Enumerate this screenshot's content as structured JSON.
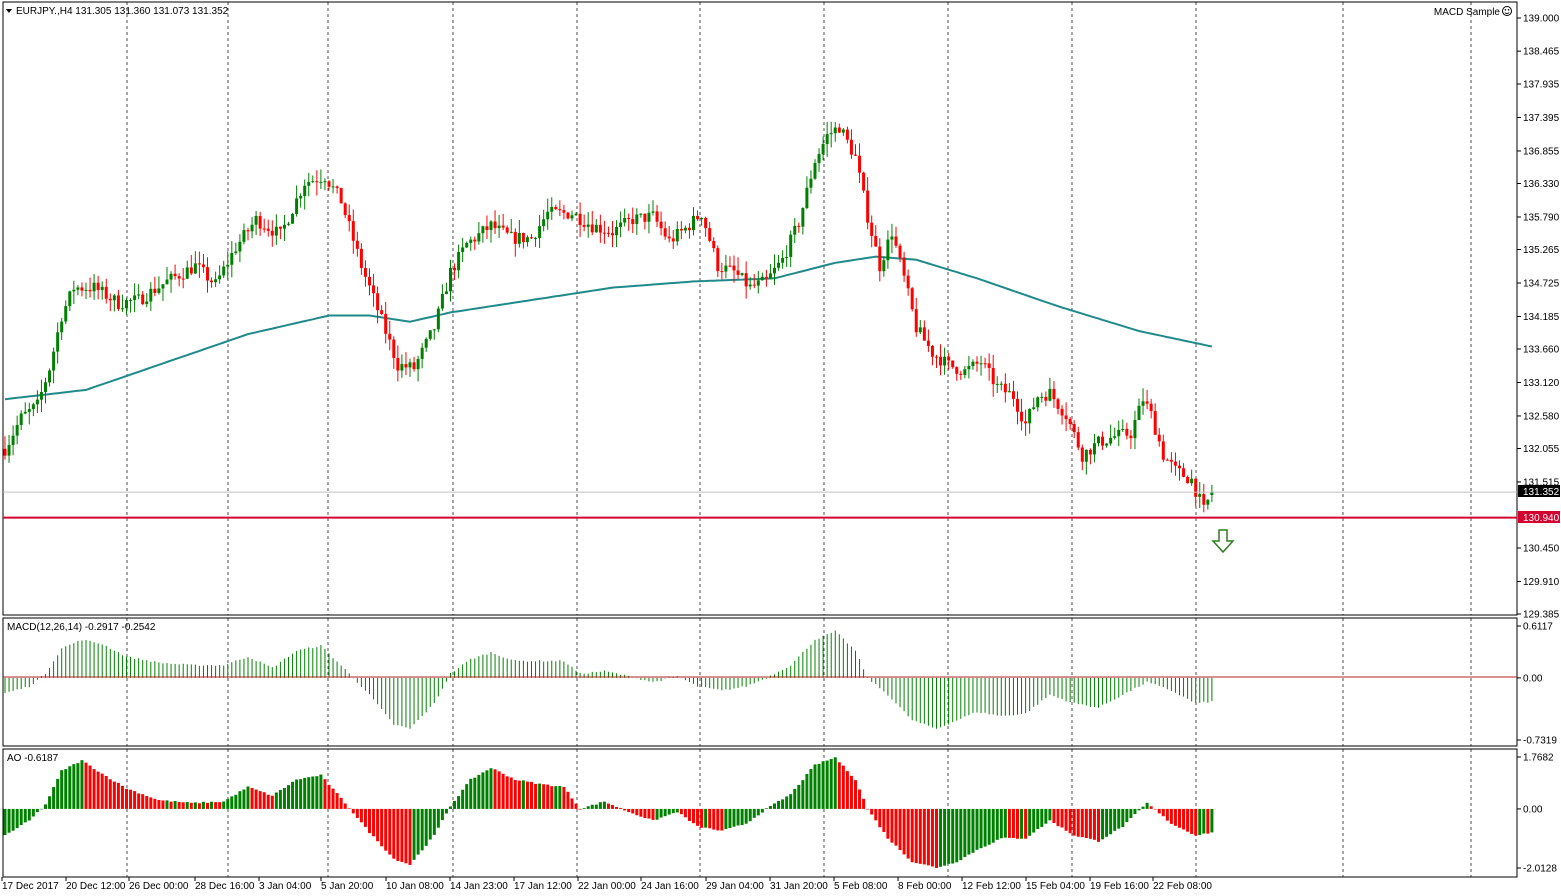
{
  "header": {
    "symbol_text": "EURJPY.,H4  131.305 131.360 131.073 131.352",
    "expert_label": "MACD Sample",
    "expert_icon": "smiley-icon"
  },
  "colors": {
    "bull_candle": "#008000",
    "bear_candle": "#ff0000",
    "moving_average": "#20898a",
    "level_line": "#d6002f",
    "signal_arrow": "#2e7d1e",
    "macd_hist": "#008000",
    "macd_zero": "#b22222",
    "ao_up": "#008000",
    "ao_down": "#ff0000",
    "grid": "#000000"
  },
  "chart_data": [
    {
      "type": "candlestick",
      "name": "price",
      "symbol": "EURJPY.",
      "timeframe": "H4",
      "ohlc_last": {
        "open": 131.305,
        "high": 131.36,
        "low": 131.073,
        "close": 131.352
      },
      "ylim": [
        129.385,
        139.0
      ],
      "y_ticks": [
        "139.000",
        "138.465",
        "137.935",
        "137.395",
        "136.855",
        "136.330",
        "135.790",
        "135.265",
        "134.725",
        "134.185",
        "133.660",
        "133.120",
        "132.580",
        "132.055",
        "131.515",
        "130.450",
        "129.910",
        "129.385"
      ],
      "current_price_label": "131.352",
      "level": {
        "label": "130.940",
        "value": 130.94
      },
      "signal": "sell-arrow",
      "x_labels": [
        "17 Dec 2017",
        "20 Dec 12:00",
        "26 Dec 00:00",
        "28 Dec 16:00",
        "3 Jan 04:00",
        "5 Jan 20:00",
        "10 Jan 08:00",
        "14 Jan 23:00",
        "17 Jan 12:00",
        "22 Jan 00:00",
        "24 Jan 16:00",
        "29 Jan 04:00",
        "31 Jan 20:00",
        "5 Feb 08:00",
        "8 Feb 00:00",
        "12 Feb 12:00",
        "15 Feb 04:00",
        "19 Feb 16:00",
        "22 Feb 08:00"
      ],
      "trend_close_anchors": [
        [
          0,
          132.05
        ],
        [
          4,
          132.55
        ],
        [
          8,
          132.75
        ],
        [
          11,
          133.35
        ],
        [
          14,
          134.2
        ],
        [
          17,
          134.65
        ],
        [
          22,
          134.65
        ],
        [
          28,
          134.4
        ],
        [
          33,
          134.45
        ],
        [
          40,
          134.75
        ],
        [
          47,
          135.0
        ],
        [
          52,
          134.7
        ],
        [
          57,
          135.3
        ],
        [
          62,
          135.75
        ],
        [
          68,
          135.5
        ],
        [
          74,
          136.35
        ],
        [
          79,
          136.45
        ],
        [
          83,
          136.05
        ],
        [
          88,
          135.0
        ],
        [
          92,
          134.3
        ],
        [
          97,
          133.4
        ],
        [
          101,
          133.35
        ],
        [
          106,
          134.0
        ],
        [
          110,
          134.9
        ],
        [
          114,
          135.35
        ],
        [
          120,
          135.65
        ],
        [
          125,
          135.45
        ],
        [
          130,
          135.45
        ],
        [
          134,
          135.85
        ],
        [
          140,
          135.85
        ],
        [
          145,
          135.65
        ],
        [
          150,
          135.55
        ],
        [
          155,
          135.75
        ],
        [
          160,
          135.8
        ],
        [
          164,
          135.4
        ],
        [
          168,
          135.6
        ],
        [
          172,
          135.85
        ],
        [
          176,
          135.0
        ],
        [
          180,
          134.9
        ],
        [
          184,
          134.65
        ],
        [
          188,
          134.75
        ],
        [
          192,
          135.1
        ],
        [
          196,
          135.7
        ],
        [
          200,
          136.7
        ],
        [
          203,
          137.1
        ],
        [
          206,
          137.25
        ],
        [
          210,
          136.75
        ],
        [
          213,
          135.8
        ],
        [
          216,
          135.0
        ],
        [
          219,
          135.55
        ],
        [
          222,
          134.8
        ],
        [
          225,
          134.0
        ],
        [
          229,
          133.6
        ],
        [
          233,
          133.4
        ],
        [
          237,
          133.3
        ],
        [
          241,
          133.45
        ],
        [
          245,
          133.05
        ],
        [
          249,
          132.9
        ],
        [
          252,
          132.45
        ],
        [
          255,
          132.9
        ],
        [
          258,
          132.95
        ],
        [
          262,
          132.6
        ],
        [
          266,
          131.95
        ],
        [
          270,
          132.15
        ],
        [
          274,
          132.25
        ],
        [
          278,
          132.3
        ],
        [
          281,
          132.85
        ],
        [
          283,
          132.6
        ],
        [
          286,
          131.95
        ],
        [
          289,
          131.7
        ],
        [
          293,
          131.55
        ],
        [
          296,
          131.05
        ],
        [
          298,
          131.35
        ]
      ],
      "moving_average_anchors": [
        [
          0,
          132.85
        ],
        [
          20,
          133.0
        ],
        [
          40,
          133.45
        ],
        [
          60,
          133.9
        ],
        [
          80,
          134.2
        ],
        [
          90,
          134.2
        ],
        [
          100,
          134.1
        ],
        [
          110,
          134.25
        ],
        [
          130,
          134.45
        ],
        [
          150,
          134.65
        ],
        [
          170,
          134.75
        ],
        [
          190,
          134.8
        ],
        [
          205,
          135.05
        ],
        [
          215,
          135.15
        ],
        [
          225,
          135.1
        ],
        [
          240,
          134.8
        ],
        [
          260,
          134.35
        ],
        [
          280,
          133.95
        ],
        [
          298,
          133.7
        ]
      ]
    },
    {
      "type": "bar",
      "name": "MACD",
      "label_text": "MACD(12,26,14) -0.2917 -0.2542",
      "params": [
        12,
        26,
        14
      ],
      "main": -0.2917,
      "signal": -0.2542,
      "ylim": [
        -0.7319,
        0.6117
      ],
      "y_ticks": [
        "0.6117",
        "0.00",
        "-0.7319"
      ],
      "anchors": [
        [
          0,
          -0.18
        ],
        [
          6,
          -0.1
        ],
        [
          10,
          0.05
        ],
        [
          14,
          0.35
        ],
        [
          19,
          0.45
        ],
        [
          24,
          0.4
        ],
        [
          30,
          0.25
        ],
        [
          38,
          0.18
        ],
        [
          46,
          0.15
        ],
        [
          54,
          0.15
        ],
        [
          60,
          0.25
        ],
        [
          66,
          0.12
        ],
        [
          72,
          0.32
        ],
        [
          78,
          0.38
        ],
        [
          84,
          0.1
        ],
        [
          90,
          -0.2
        ],
        [
          96,
          -0.55
        ],
        [
          100,
          -0.6
        ],
        [
          106,
          -0.3
        ],
        [
          110,
          0.05
        ],
        [
          115,
          0.22
        ],
        [
          120,
          0.3
        ],
        [
          126,
          0.2
        ],
        [
          132,
          0.2
        ],
        [
          138,
          0.2
        ],
        [
          142,
          0.05
        ],
        [
          148,
          0.08
        ],
        [
          154,
          0.02
        ],
        [
          160,
          -0.05
        ],
        [
          166,
          0.02
        ],
        [
          171,
          -0.1
        ],
        [
          177,
          -0.15
        ],
        [
          183,
          -0.1
        ],
        [
          188,
          0.0
        ],
        [
          194,
          0.15
        ],
        [
          200,
          0.45
        ],
        [
          205,
          0.55
        ],
        [
          210,
          0.32
        ],
        [
          213,
          0.0
        ],
        [
          218,
          -0.2
        ],
        [
          224,
          -0.5
        ],
        [
          230,
          -0.6
        ],
        [
          235,
          -0.5
        ],
        [
          240,
          -0.4
        ],
        [
          246,
          -0.45
        ],
        [
          252,
          -0.42
        ],
        [
          258,
          -0.2
        ],
        [
          264,
          -0.3
        ],
        [
          270,
          -0.35
        ],
        [
          276,
          -0.2
        ],
        [
          282,
          -0.05
        ],
        [
          288,
          -0.15
        ],
        [
          294,
          -0.3
        ],
        [
          298,
          -0.28
        ]
      ]
    },
    {
      "type": "bar",
      "name": "AO",
      "label_text": "AO -0.6187",
      "value": -0.6187,
      "ylim": [
        -2.0128,
        1.7682
      ],
      "y_ticks": [
        "1.7682",
        "0.00",
        "-2.0128"
      ],
      "anchors": [
        [
          0,
          -0.9
        ],
        [
          6,
          -0.4
        ],
        [
          10,
          0.15
        ],
        [
          14,
          1.3
        ],
        [
          19,
          1.65
        ],
        [
          24,
          1.2
        ],
        [
          30,
          0.7
        ],
        [
          38,
          0.3
        ],
        [
          46,
          0.2
        ],
        [
          54,
          0.25
        ],
        [
          60,
          0.75
        ],
        [
          66,
          0.45
        ],
        [
          72,
          1.0
        ],
        [
          78,
          1.15
        ],
        [
          84,
          0.2
        ],
        [
          90,
          -0.8
        ],
        [
          96,
          -1.7
        ],
        [
          100,
          -1.9
        ],
        [
          106,
          -0.9
        ],
        [
          110,
          0.1
        ],
        [
          115,
          1.0
        ],
        [
          120,
          1.4
        ],
        [
          126,
          1.0
        ],
        [
          132,
          0.85
        ],
        [
          138,
          0.75
        ],
        [
          142,
          0.0
        ],
        [
          148,
          0.25
        ],
        [
          154,
          -0.1
        ],
        [
          160,
          -0.4
        ],
        [
          166,
          -0.1
        ],
        [
          171,
          -0.6
        ],
        [
          177,
          -0.75
        ],
        [
          183,
          -0.5
        ],
        [
          188,
          0.0
        ],
        [
          194,
          0.5
        ],
        [
          200,
          1.5
        ],
        [
          205,
          1.75
        ],
        [
          210,
          1.0
        ],
        [
          213,
          0.0
        ],
        [
          218,
          -1.0
        ],
        [
          224,
          -1.8
        ],
        [
          230,
          -2.0
        ],
        [
          235,
          -1.8
        ],
        [
          240,
          -1.4
        ],
        [
          246,
          -1.0
        ],
        [
          252,
          -1.0
        ],
        [
          258,
          -0.4
        ],
        [
          264,
          -0.9
        ],
        [
          270,
          -1.1
        ],
        [
          276,
          -0.6
        ],
        [
          282,
          0.2
        ],
        [
          288,
          -0.5
        ],
        [
          294,
          -0.9
        ],
        [
          298,
          -0.8
        ]
      ]
    }
  ]
}
